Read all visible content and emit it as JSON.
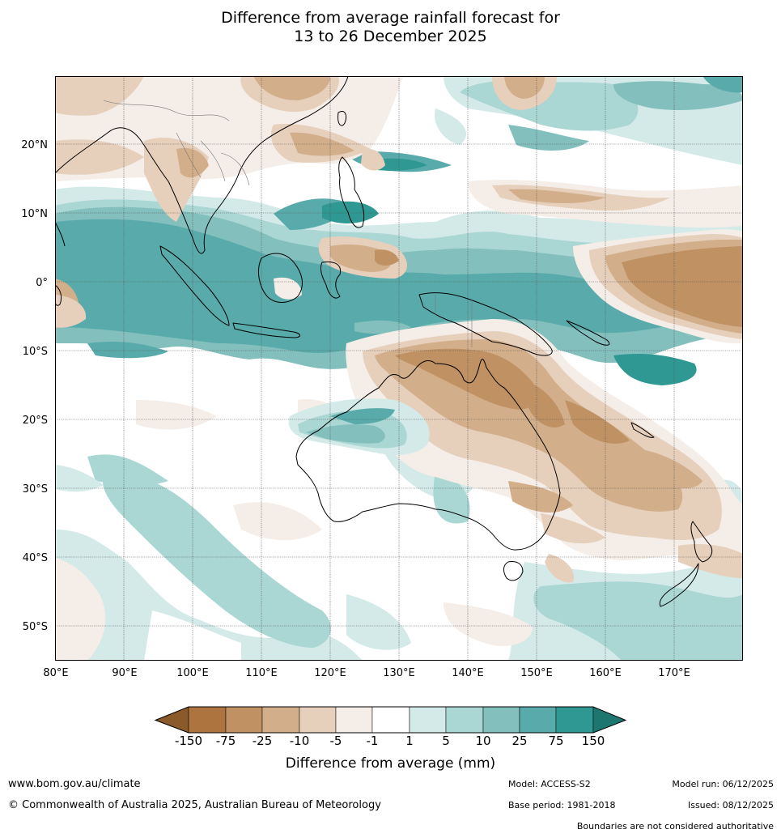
{
  "title": {
    "line1": "Difference from average rainfall forecast for",
    "line2": "13 to 26 December 2025"
  },
  "axes": {
    "lat_labels": [
      "20°N",
      "10°N",
      "0°",
      "10°S",
      "20°S",
      "30°S",
      "40°S",
      "50°S"
    ],
    "lon_labels": [
      "80°E",
      "90°E",
      "100°E",
      "110°E",
      "120°E",
      "130°E",
      "140°E",
      "150°E",
      "160°E",
      "170°E"
    ],
    "lon_range": [
      80,
      180
    ],
    "lat_range": [
      -55,
      30
    ]
  },
  "legend": {
    "label": "Difference from average (mm)",
    "ticks": [
      "-150",
      "-75",
      "-25",
      "-10",
      "-5",
      "-1",
      "1",
      "5",
      "10",
      "25",
      "75",
      "150"
    ],
    "colors": {
      "lt_-150": "#8b5a2b",
      "-150_-75": "#ad7440",
      "-75_-25": "#bf9163",
      "-25_-10": "#d2ae8a",
      "-10_-5": "#e6cfbb",
      "-5_-1": "#f5ede7",
      "-1_1": "#ffffff",
      "1_5": "#d3eae9",
      "5_10": "#aad6d4",
      "10_25": "#82bfbd",
      "25_75": "#59abab",
      "75_150": "#2f9892",
      "gt_150": "#1e7670"
    }
  },
  "footer": {
    "url": "www.bom.gov.au/climate",
    "copyright": "© Commonwealth of Australia 2025, Australian Bureau of Meteorology",
    "model": "Model: ACCESS-S2",
    "base_period": "Base period: 1981-2018",
    "model_run": "Model run: 06/12/2025",
    "issued": "Issued: 08/12/2025",
    "boundaries": "Boundaries are not considered authoritative"
  }
}
